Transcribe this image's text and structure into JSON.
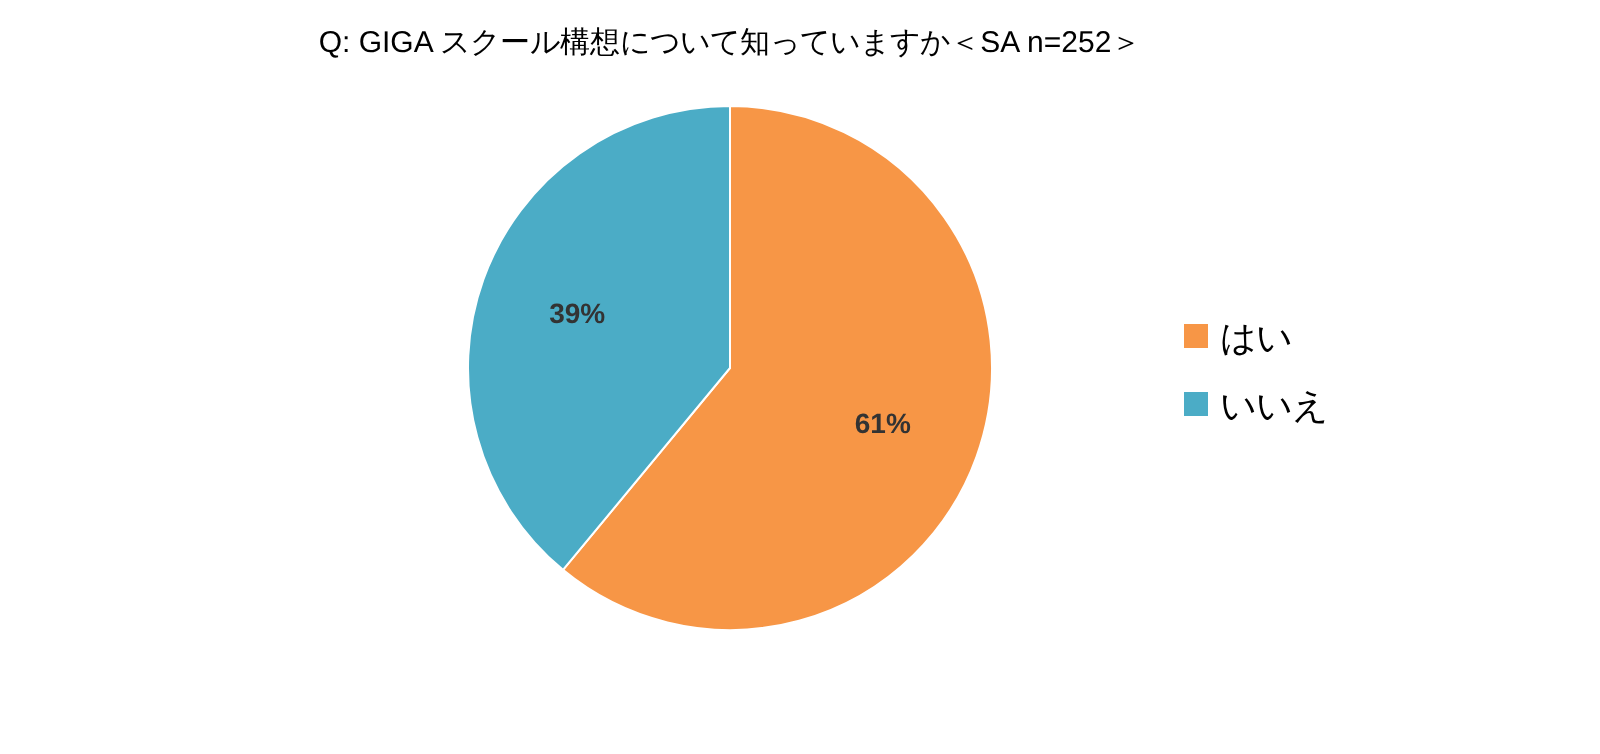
{
  "chart_data": {
    "type": "pie",
    "title": "Q: GIGA スクール構想について知っていますか＜SA n=252＞",
    "categories": [
      "はい",
      "いいえ"
    ],
    "values": [
      61,
      39
    ],
    "colors": [
      "#f79646",
      "#4bacc6"
    ],
    "value_labels": [
      "61%",
      "39%"
    ],
    "legend": "right"
  }
}
